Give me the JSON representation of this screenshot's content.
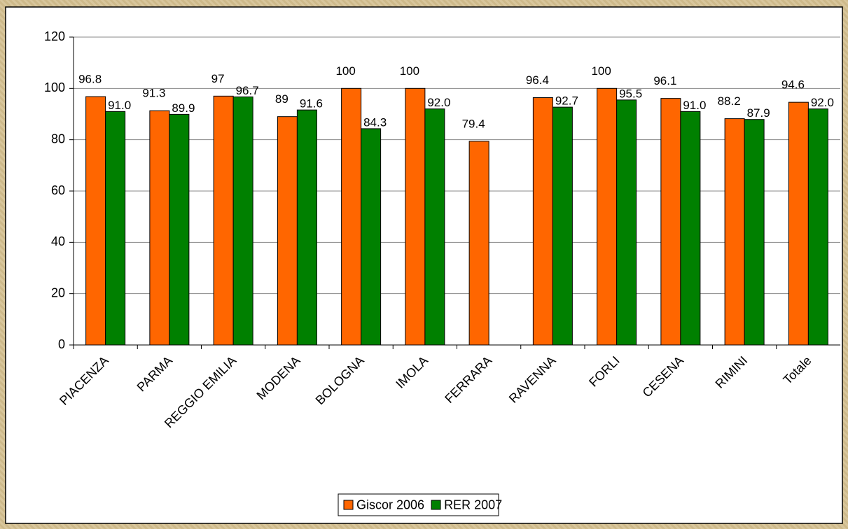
{
  "chart_data": {
    "type": "bar",
    "categories": [
      "PIACENZA",
      "PARMA",
      "REGGIO EMILIA",
      "MODENA",
      "BOLOGNA",
      "IMOLA",
      "FERRARA",
      "RAVENNA",
      "FORLI",
      "CESENA",
      "RIMINI",
      "Totale"
    ],
    "series": [
      {
        "name": "Giscor 2006",
        "color": "#ff6600",
        "values": [
          96.8,
          91.3,
          97,
          89,
          100,
          100,
          79.4,
          96.4,
          100,
          96.1,
          88.2,
          94.6
        ]
      },
      {
        "name": "RER 2007",
        "color": "#008000",
        "values": [
          91.0,
          89.9,
          96.7,
          91.6,
          84.3,
          92.0,
          null,
          92.7,
          95.5,
          91.0,
          87.9,
          92.0
        ],
        "value_labels": [
          "91.0",
          "89.9",
          "96.7",
          "91.6",
          "84.3",
          "92.0",
          null,
          "92.7",
          "95.5",
          "91.0",
          "87.9",
          "92.0"
        ]
      }
    ],
    "ylim": [
      0,
      120
    ],
    "yticks": [
      0,
      20,
      40,
      60,
      80,
      100,
      120
    ],
    "grid": true,
    "legend": "bottom"
  }
}
